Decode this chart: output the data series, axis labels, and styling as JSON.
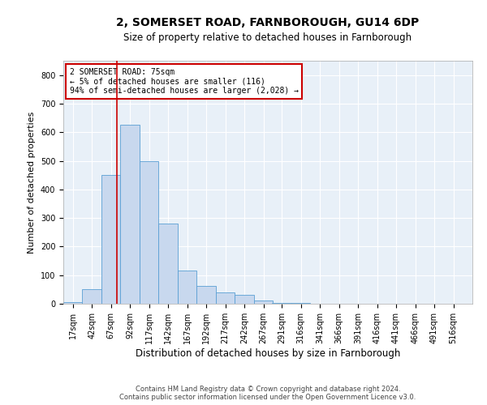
{
  "title": "2, SOMERSET ROAD, FARNBOROUGH, GU14 6DP",
  "subtitle": "Size of property relative to detached houses in Farnborough",
  "xlabel": "Distribution of detached houses by size in Farnborough",
  "ylabel": "Number of detached properties",
  "footer_line1": "Contains HM Land Registry data © Crown copyright and database right 2024.",
  "footer_line2": "Contains public sector information licensed under the Open Government Licence v3.0.",
  "annotation_title": "2 SOMERSET ROAD: 75sqm",
  "annotation_line1": "← 5% of detached houses are smaller (116)",
  "annotation_line2": "94% of semi-detached houses are larger (2,028) →",
  "bar_color": "#c8d8ee",
  "bar_edge_color": "#5a9fd4",
  "vline_color": "#cc0000",
  "annotation_box_color": "#cc0000",
  "bin_labels": [
    "17sqm",
    "42sqm",
    "67sqm",
    "92sqm",
    "117sqm",
    "142sqm",
    "167sqm",
    "192sqm",
    "217sqm",
    "242sqm",
    "267sqm",
    "291sqm",
    "316sqm",
    "341sqm",
    "366sqm",
    "391sqm",
    "416sqm",
    "441sqm",
    "466sqm",
    "491sqm",
    "516sqm"
  ],
  "bin_centers": [
    17,
    42,
    67,
    92,
    117,
    142,
    167,
    192,
    217,
    242,
    267,
    291,
    316,
    341,
    366,
    391,
    416,
    441,
    466,
    491,
    516
  ],
  "bin_width": 25,
  "bar_heights": [
    5,
    50,
    450,
    625,
    500,
    280,
    115,
    62,
    40,
    30,
    10,
    3,
    3,
    0,
    0,
    0,
    1,
    0,
    0,
    0,
    0
  ],
  "vline_x": 75,
  "ylim": [
    0,
    850
  ],
  "yticks": [
    0,
    100,
    200,
    300,
    400,
    500,
    600,
    700,
    800
  ],
  "xlim": [
    4.5,
    541
  ],
  "background_color": "#e8f0f8",
  "grid_color": "#ffffff",
  "title_fontsize": 10,
  "subtitle_fontsize": 8.5,
  "ylabel_fontsize": 8,
  "xlabel_fontsize": 8.5,
  "tick_fontsize": 7,
  "annotation_fontsize": 7,
  "footer_fontsize": 6
}
